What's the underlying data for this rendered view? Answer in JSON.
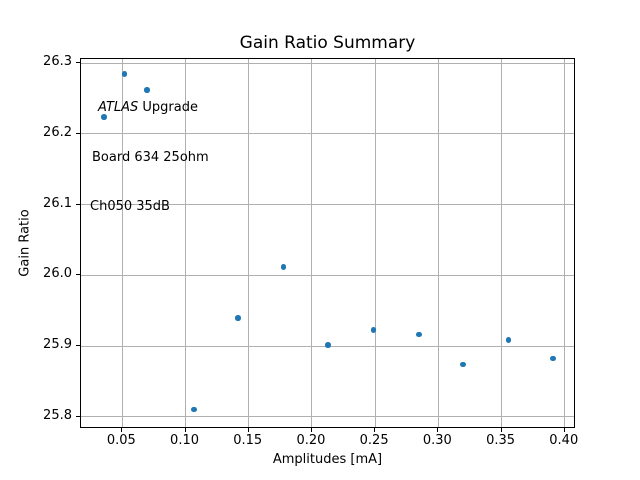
{
  "chart_data": {
    "type": "scatter",
    "title": "Gain Ratio Summary",
    "xlabel": "Amplitudes [mA]",
    "ylabel": "Gain Ratio",
    "annotation_lines": [
      {
        "italic": "ATLAS",
        "rest": " Upgrade"
      },
      {
        "italic": "",
        "rest": "Board 634 25ohm"
      },
      {
        "italic": "",
        "rest": "Ch050 35dB"
      }
    ],
    "xlim": [
      0.0177,
      0.4077
    ],
    "ylim": [
      25.785,
      26.305
    ],
    "xticks": {
      "values": [
        0.05,
        0.1,
        0.15,
        0.2,
        0.25,
        0.3,
        0.35,
        0.4
      ],
      "labels": [
        "0.05",
        "0.10",
        "0.15",
        "0.20",
        "0.25",
        "0.30",
        "0.35",
        "0.40"
      ]
    },
    "yticks": {
      "values": [
        25.8,
        25.9,
        26.0,
        26.1,
        26.2,
        26.3
      ],
      "labels": [
        "25.8",
        "25.9",
        "26.0",
        "26.1",
        "26.2",
        "26.3"
      ]
    },
    "grid": true,
    "legend_position": "none",
    "marker_color": "#1f77b4",
    "grid_color": "#b0b0b0",
    "points": [
      [
        0.036,
        26.223
      ],
      [
        0.052,
        26.284
      ],
      [
        0.07,
        26.261
      ],
      [
        0.107,
        25.81
      ],
      [
        0.142,
        25.939
      ],
      [
        0.178,
        26.011
      ],
      [
        0.213,
        25.901
      ],
      [
        0.249,
        25.922
      ],
      [
        0.285,
        25.916
      ],
      [
        0.32,
        25.873
      ],
      [
        0.356,
        25.908
      ],
      [
        0.391,
        25.882
      ]
    ]
  }
}
